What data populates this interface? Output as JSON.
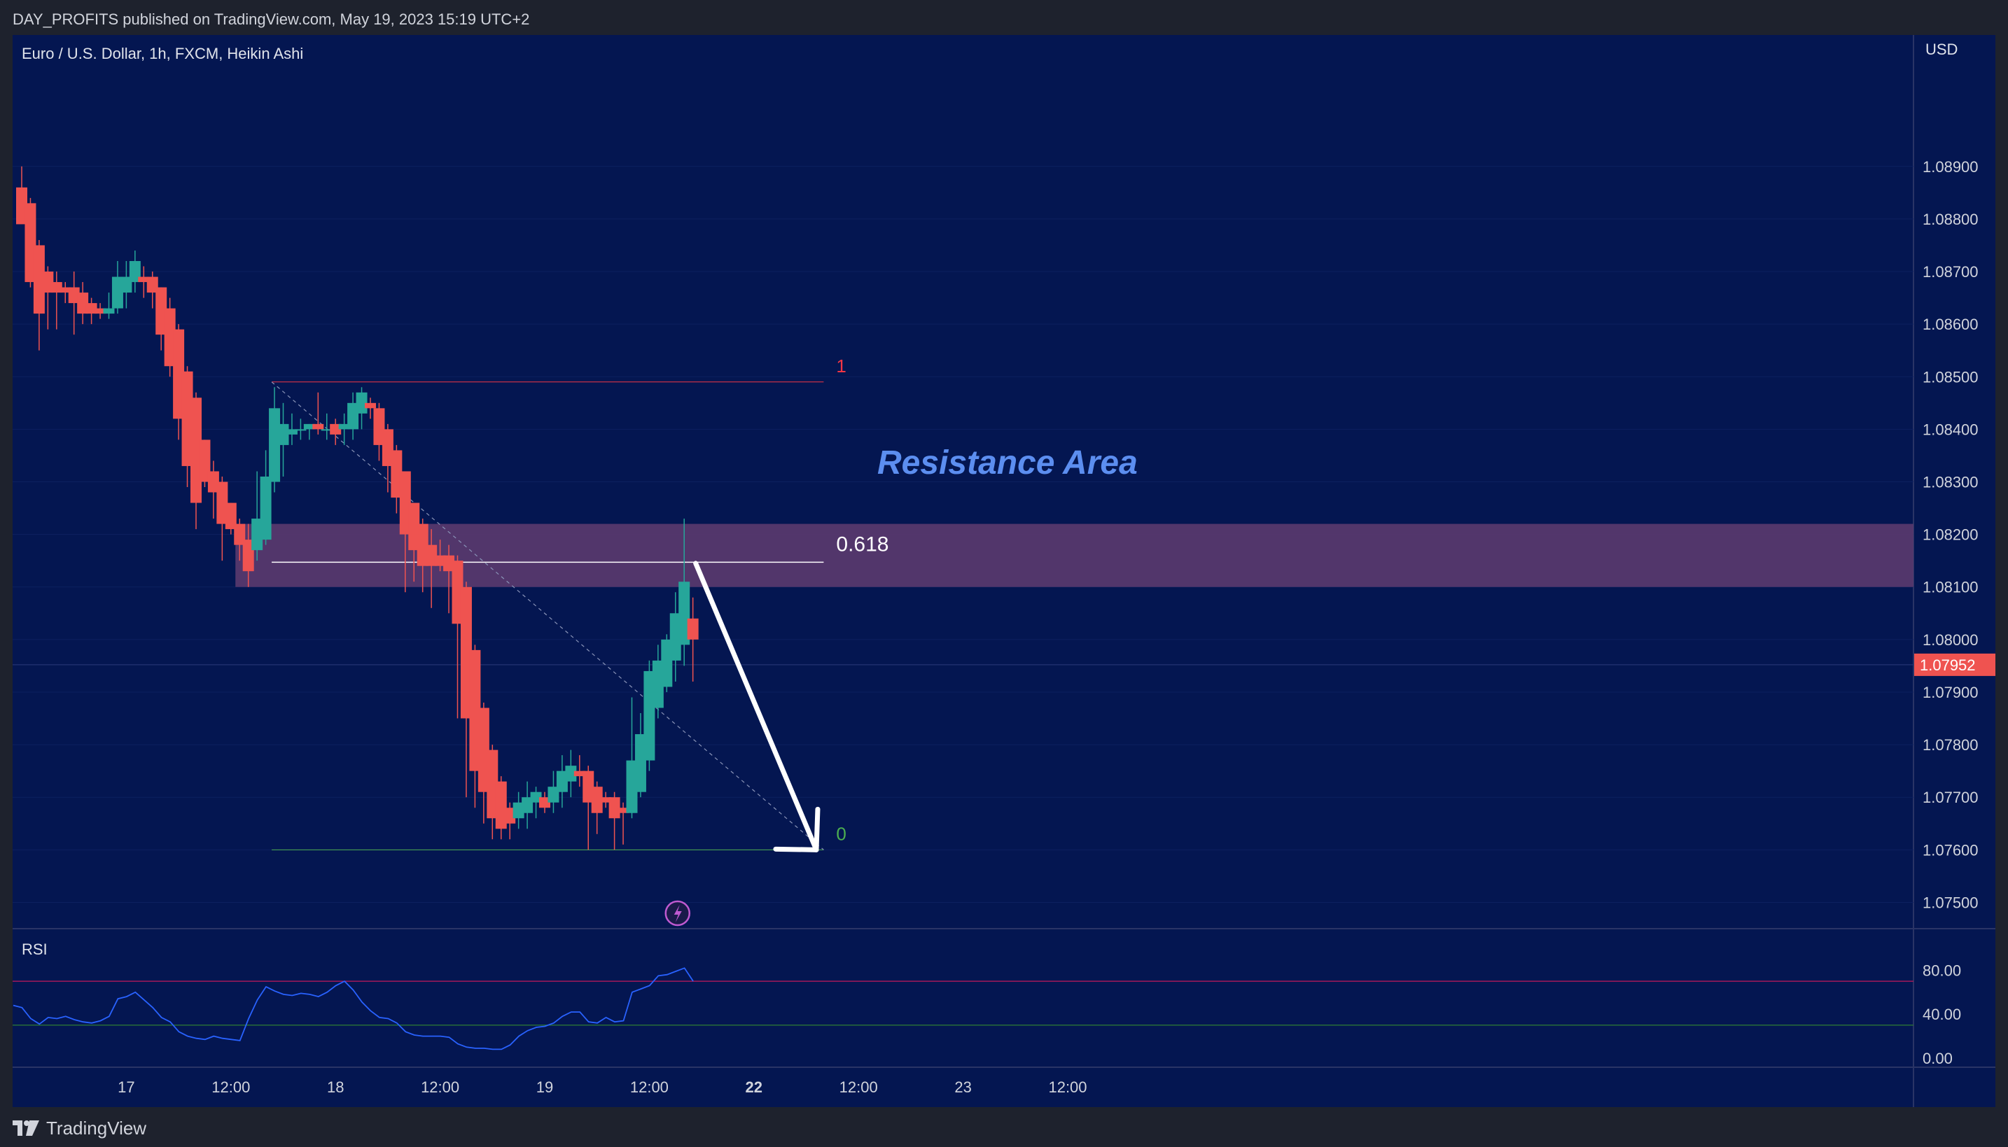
{
  "header": {
    "published_line": "DAY_PROFITS published on TradingView.com, May 19, 2023 15:19 UTC+2"
  },
  "footer": {
    "logo_icon": "tradingview-logo-icon",
    "logo_text": "TradingView"
  },
  "colors": {
    "background": "#041651",
    "chrome": "#1e222d",
    "up_candle": "#26a69a",
    "down_candle": "#ef5350",
    "rsi_line": "#2962ff",
    "resistance_fill": "#5b3a6e",
    "resistance_label": "#5c8ef0",
    "fib_1": "#f23645",
    "fib_0": "#4caf50",
    "price_badge": "#ef5350"
  },
  "chart_data": [
    {
      "type": "candlestick",
      "title": "Euro / U.S. Dollar, 1h, FXCM, Heikin Ashi",
      "currency_label": "USD",
      "ylim": [
        1.0745,
        1.0915
      ],
      "y_ticks": [
        "1.08900",
        "1.08800",
        "1.08700",
        "1.08600",
        "1.08500",
        "1.08400",
        "1.08300",
        "1.08200",
        "1.08100",
        "1.08000",
        "1.07900",
        "1.07800",
        "1.07700",
        "1.07600",
        "1.07500"
      ],
      "x_ticks": [
        "17",
        "12:00",
        "18",
        "12:00",
        "19",
        "12:00",
        "22",
        "12:00",
        "23",
        "12:00"
      ],
      "bold_x_ticks": [
        "22"
      ],
      "last_price": 1.07952,
      "last_price_label": "1.07952",
      "ohlc": [
        {
          "o": 1.0886,
          "h": 1.089,
          "l": 1.088,
          "c": 1.0879
        },
        {
          "o": 1.0883,
          "h": 1.0884,
          "l": 1.0867,
          "c": 1.0868
        },
        {
          "o": 1.0875,
          "h": 1.0876,
          "l": 1.0855,
          "c": 1.0862
        },
        {
          "o": 1.087,
          "h": 1.0871,
          "l": 1.0859,
          "c": 1.0866
        },
        {
          "o": 1.0868,
          "h": 1.087,
          "l": 1.0859,
          "c": 1.0866
        },
        {
          "o": 1.0867,
          "h": 1.0868,
          "l": 1.0864,
          "c": 1.0866
        },
        {
          "o": 1.0867,
          "h": 1.087,
          "l": 1.0858,
          "c": 1.0864
        },
        {
          "o": 1.0866,
          "h": 1.0868,
          "l": 1.086,
          "c": 1.0862
        },
        {
          "o": 1.0864,
          "h": 1.0865,
          "l": 1.086,
          "c": 1.0862
        },
        {
          "o": 1.0863,
          "h": 1.0864,
          "l": 1.0861,
          "c": 1.0862
        },
        {
          "o": 1.0862,
          "h": 1.0866,
          "l": 1.0861,
          "c": 1.0863
        },
        {
          "o": 1.0863,
          "h": 1.0872,
          "l": 1.0862,
          "c": 1.0869
        },
        {
          "o": 1.0866,
          "h": 1.0872,
          "l": 1.0863,
          "c": 1.0869
        },
        {
          "o": 1.0868,
          "h": 1.0874,
          "l": 1.0866,
          "c": 1.0872
        },
        {
          "o": 1.0869,
          "h": 1.0871,
          "l": 1.0865,
          "c": 1.0868
        },
        {
          "o": 1.0869,
          "h": 1.087,
          "l": 1.0863,
          "c": 1.0866
        },
        {
          "o": 1.0867,
          "h": 1.0867,
          "l": 1.0855,
          "c": 1.0858
        },
        {
          "o": 1.0863,
          "h": 1.0865,
          "l": 1.085,
          "c": 1.0852
        },
        {
          "o": 1.0859,
          "h": 1.086,
          "l": 1.0838,
          "c": 1.0842
        },
        {
          "o": 1.0851,
          "h": 1.0852,
          "l": 1.0829,
          "c": 1.0833
        },
        {
          "o": 1.0846,
          "h": 1.0847,
          "l": 1.0821,
          "c": 1.0826
        },
        {
          "o": 1.0838,
          "h": 1.0838,
          "l": 1.0829,
          "c": 1.083
        },
        {
          "o": 1.0832,
          "h": 1.0834,
          "l": 1.0823,
          "c": 1.0828
        },
        {
          "o": 1.083,
          "h": 1.0831,
          "l": 1.0815,
          "c": 1.0822
        },
        {
          "o": 1.0826,
          "h": 1.0826,
          "l": 1.082,
          "c": 1.0821
        },
        {
          "o": 1.0822,
          "h": 1.0823,
          "l": 1.0815,
          "c": 1.0818
        },
        {
          "o": 1.0819,
          "h": 1.0822,
          "l": 1.081,
          "c": 1.0813
        },
        {
          "o": 1.0817,
          "h": 1.0832,
          "l": 1.0815,
          "c": 1.0823
        },
        {
          "o": 1.0819,
          "h": 1.0836,
          "l": 1.0818,
          "c": 1.0831
        },
        {
          "o": 1.083,
          "h": 1.0848,
          "l": 1.0828,
          "c": 1.0844
        },
        {
          "o": 1.0837,
          "h": 1.0845,
          "l": 1.0831,
          "c": 1.0841
        },
        {
          "o": 1.0839,
          "h": 1.0843,
          "l": 1.0837,
          "c": 1.084
        },
        {
          "o": 1.084,
          "h": 1.0842,
          "l": 1.0838,
          "c": 1.084
        },
        {
          "o": 1.084,
          "h": 1.0841,
          "l": 1.0838,
          "c": 1.0841
        },
        {
          "o": 1.0841,
          "h": 1.0847,
          "l": 1.0839,
          "c": 1.084
        },
        {
          "o": 1.084,
          "h": 1.0843,
          "l": 1.0838,
          "c": 1.084
        },
        {
          "o": 1.0841,
          "h": 1.0842,
          "l": 1.0837,
          "c": 1.0839
        },
        {
          "o": 1.084,
          "h": 1.0843,
          "l": 1.0837,
          "c": 1.0841
        },
        {
          "o": 1.084,
          "h": 1.0847,
          "l": 1.0838,
          "c": 1.0845
        },
        {
          "o": 1.0843,
          "h": 1.0848,
          "l": 1.084,
          "c": 1.0847
        },
        {
          "o": 1.0845,
          "h": 1.0846,
          "l": 1.0842,
          "c": 1.0844
        },
        {
          "o": 1.0844,
          "h": 1.0845,
          "l": 1.0834,
          "c": 1.0837
        },
        {
          "o": 1.084,
          "h": 1.0841,
          "l": 1.0828,
          "c": 1.0833
        },
        {
          "o": 1.0836,
          "h": 1.0837,
          "l": 1.0824,
          "c": 1.0827
        },
        {
          "o": 1.0832,
          "h": 1.0832,
          "l": 1.0809,
          "c": 1.082
        },
        {
          "o": 1.0826,
          "h": 1.0826,
          "l": 1.0811,
          "c": 1.0817
        },
        {
          "o": 1.0822,
          "h": 1.0823,
          "l": 1.0809,
          "c": 1.0814
        },
        {
          "o": 1.0818,
          "h": 1.0821,
          "l": 1.0806,
          "c": 1.0814
        },
        {
          "o": 1.0816,
          "h": 1.0819,
          "l": 1.0813,
          "c": 1.0814
        },
        {
          "o": 1.0816,
          "h": 1.0818,
          "l": 1.0805,
          "c": 1.0813
        },
        {
          "o": 1.0815,
          "h": 1.0816,
          "l": 1.0785,
          "c": 1.0803
        },
        {
          "o": 1.081,
          "h": 1.0811,
          "l": 1.077,
          "c": 1.0785
        },
        {
          "o": 1.0798,
          "h": 1.0799,
          "l": 1.0768,
          "c": 1.0775
        },
        {
          "o": 1.0787,
          "h": 1.0788,
          "l": 1.0765,
          "c": 1.0771
        },
        {
          "o": 1.0779,
          "h": 1.078,
          "l": 1.0762,
          "c": 1.0766
        },
        {
          "o": 1.0773,
          "h": 1.0774,
          "l": 1.0762,
          "c": 1.0764
        },
        {
          "o": 1.0768,
          "h": 1.0769,
          "l": 1.0762,
          "c": 1.0765
        },
        {
          "o": 1.0766,
          "h": 1.0771,
          "l": 1.0764,
          "c": 1.0769
        },
        {
          "o": 1.0767,
          "h": 1.0773,
          "l": 1.0764,
          "c": 1.077
        },
        {
          "o": 1.0769,
          "h": 1.0772,
          "l": 1.0766,
          "c": 1.0771
        },
        {
          "o": 1.077,
          "h": 1.0771,
          "l": 1.0767,
          "c": 1.0768
        },
        {
          "o": 1.0769,
          "h": 1.0775,
          "l": 1.0767,
          "c": 1.0772
        },
        {
          "o": 1.0771,
          "h": 1.0778,
          "l": 1.0768,
          "c": 1.0775
        },
        {
          "o": 1.0773,
          "h": 1.0779,
          "l": 1.077,
          "c": 1.0776
        },
        {
          "o": 1.0775,
          "h": 1.0778,
          "l": 1.0772,
          "c": 1.0774
        },
        {
          "o": 1.0775,
          "h": 1.0776,
          "l": 1.076,
          "c": 1.0769
        },
        {
          "o": 1.0772,
          "h": 1.0773,
          "l": 1.0763,
          "c": 1.0767
        },
        {
          "o": 1.077,
          "h": 1.0771,
          "l": 1.0768,
          "c": 1.0769
        },
        {
          "o": 1.077,
          "h": 1.0771,
          "l": 1.076,
          "c": 1.0766
        },
        {
          "o": 1.0768,
          "h": 1.0769,
          "l": 1.0761,
          "c": 1.0767
        },
        {
          "o": 1.0767,
          "h": 1.0789,
          "l": 1.0766,
          "c": 1.0777
        },
        {
          "o": 1.0771,
          "h": 1.0786,
          "l": 1.077,
          "c": 1.0782
        },
        {
          "o": 1.0777,
          "h": 1.0796,
          "l": 1.0775,
          "c": 1.0794
        },
        {
          "o": 1.0787,
          "h": 1.0799,
          "l": 1.0785,
          "c": 1.0796
        },
        {
          "o": 1.0791,
          "h": 1.0801,
          "l": 1.079,
          "c": 1.08
        },
        {
          "o": 1.0796,
          "h": 1.0809,
          "l": 1.0792,
          "c": 1.0805
        },
        {
          "o": 1.0799,
          "h": 1.0823,
          "l": 1.0795,
          "c": 1.0811
        },
        {
          "o": 1.0804,
          "h": 1.0808,
          "l": 1.0792,
          "c": 1.08
        }
      ],
      "annotations": {
        "resistance_label": "Resistance Area",
        "resistance_zone": [
          1.081,
          1.0822
        ],
        "fib_levels": [
          {
            "label": "1",
            "price": 1.0849
          },
          {
            "label": "0.618",
            "price": 1.08147
          },
          {
            "label": "0",
            "price": 1.076
          }
        ],
        "fib_start_bar": 29,
        "fib_end_bar": 92,
        "trend_arrow": {
          "from_bar": 77,
          "from_price": 1.08145,
          "to_bar": 91,
          "to_price": 1.076
        },
        "event_icon": "lightning-event-icon"
      }
    },
    {
      "type": "line",
      "title": "RSI",
      "ylim": [
        0,
        100
      ],
      "y_ticks": [
        "80.00",
        "40.00",
        "0.00"
      ],
      "upper_band": 70,
      "lower_band": 30,
      "values": [
        48,
        46,
        36,
        31,
        37,
        36,
        38,
        35,
        33,
        32,
        34,
        38,
        54,
        56,
        60,
        53,
        46,
        37,
        33,
        24,
        20,
        18,
        17,
        20,
        18,
        17,
        16,
        36,
        53,
        65,
        61,
        58,
        57,
        59,
        58,
        56,
        60,
        66,
        70,
        62,
        51,
        43,
        37,
        36,
        32,
        24,
        21,
        20,
        20,
        20,
        19,
        13,
        10,
        9,
        9,
        8,
        8,
        12,
        20,
        25,
        28,
        29,
        32,
        38,
        42,
        42,
        33,
        32,
        37,
        33,
        34,
        60,
        63,
        66,
        75,
        76,
        79,
        82,
        70
      ]
    }
  ]
}
